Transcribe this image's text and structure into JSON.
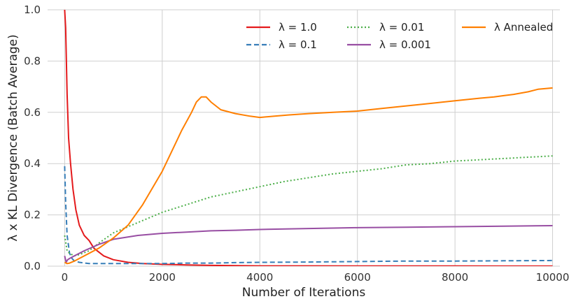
{
  "chart_data": {
    "type": "line",
    "xlabel": "Number of Iterations",
    "ylabel": "λ x KL Divergence (Batch Average)",
    "xlim": [
      -350,
      10150
    ],
    "ylim": [
      0.0,
      1.0
    ],
    "xticks": [
      0,
      2000,
      4000,
      6000,
      8000,
      10000
    ],
    "xtick_labels": [
      "0",
      "2000",
      "4000",
      "6000",
      "8000",
      "10000"
    ],
    "yticks": [
      0.0,
      0.2,
      0.4,
      0.6,
      0.8,
      1.0
    ],
    "ytick_labels": [
      "0.0",
      "0.2",
      "0.4",
      "0.6",
      "0.8",
      "1.0"
    ],
    "grid": true,
    "legend_position": "top-right",
    "series": [
      {
        "name": "λ = 1.0",
        "color": "#e41a1c",
        "dash": "solid",
        "x": [
          0,
          20,
          50,
          80,
          120,
          170,
          230,
          300,
          400,
          500,
          600,
          800,
          1000,
          1300,
          1600,
          2000,
          2500,
          3000,
          3500,
          4000,
          5000,
          6000,
          7000,
          8000,
          9000,
          10000
        ],
        "y": [
          1.0,
          0.93,
          0.67,
          0.5,
          0.4,
          0.3,
          0.22,
          0.16,
          0.12,
          0.1,
          0.07,
          0.04,
          0.025,
          0.015,
          0.01,
          0.007,
          0.005,
          0.003,
          0.002,
          0.001,
          0.001,
          0.0005,
          0.0005,
          0.0005,
          0.0003,
          0.0003
        ]
      },
      {
        "name": "λ = 0.1",
        "color": "#377eb8",
        "dash": "dashed",
        "x": [
          0,
          20,
          50,
          100,
          150,
          200,
          300,
          500,
          800,
          1000,
          1500,
          2000,
          2500,
          3000,
          3500,
          4000,
          5000,
          6000,
          7000,
          8000,
          9000,
          10000
        ],
        "y": [
          0.39,
          0.25,
          0.12,
          0.05,
          0.03,
          0.02,
          0.015,
          0.01,
          0.01,
          0.01,
          0.01,
          0.01,
          0.012,
          0.012,
          0.014,
          0.015,
          0.016,
          0.018,
          0.02,
          0.02,
          0.021,
          0.022
        ]
      },
      {
        "name": "λ = 0.01",
        "color": "#4daf4a",
        "dash": "dotted",
        "x": [
          0,
          50,
          100,
          200,
          300,
          500,
          700,
          1000,
          1500,
          2000,
          2500,
          3000,
          3500,
          4000,
          4500,
          5000,
          5500,
          6000,
          6500,
          7000,
          7500,
          8000,
          8500,
          9000,
          9500,
          10000
        ],
        "y": [
          0.12,
          0.06,
          0.05,
          0.04,
          0.045,
          0.06,
          0.09,
          0.13,
          0.17,
          0.21,
          0.24,
          0.27,
          0.29,
          0.31,
          0.33,
          0.345,
          0.36,
          0.37,
          0.38,
          0.395,
          0.4,
          0.41,
          0.415,
          0.42,
          0.425,
          0.43
        ]
      },
      {
        "name": "λ = 0.001",
        "color": "#984ea3",
        "dash": "solid",
        "x": [
          0,
          30,
          60,
          100,
          200,
          400,
          700,
          1000,
          1500,
          2000,
          2500,
          3000,
          3500,
          4000,
          5000,
          6000,
          7000,
          8000,
          9000,
          10000
        ],
        "y": [
          0.04,
          0.015,
          0.025,
          0.03,
          0.04,
          0.06,
          0.085,
          0.105,
          0.12,
          0.128,
          0.133,
          0.138,
          0.14,
          0.143,
          0.147,
          0.15,
          0.152,
          0.154,
          0.156,
          0.158
        ]
      },
      {
        "name": "λ Annealed",
        "color": "#ff7f00",
        "dash": "solid",
        "x": [
          0,
          50,
          100,
          200,
          300,
          500,
          700,
          1000,
          1300,
          1600,
          2000,
          2200,
          2400,
          2600,
          2700,
          2800,
          2900,
          3000,
          3200,
          3500,
          3800,
          4000,
          4300,
          4600,
          5000,
          5500,
          6000,
          6500,
          7000,
          7500,
          8000,
          8500,
          8800,
          9000,
          9200,
          9500,
          9700,
          10000
        ],
        "y": [
          0.015,
          0.01,
          0.012,
          0.02,
          0.03,
          0.05,
          0.07,
          0.11,
          0.16,
          0.24,
          0.37,
          0.45,
          0.53,
          0.6,
          0.64,
          0.66,
          0.66,
          0.64,
          0.61,
          0.595,
          0.585,
          0.58,
          0.585,
          0.59,
          0.595,
          0.6,
          0.605,
          0.615,
          0.625,
          0.635,
          0.645,
          0.655,
          0.66,
          0.665,
          0.67,
          0.68,
          0.69,
          0.695
        ]
      }
    ]
  }
}
